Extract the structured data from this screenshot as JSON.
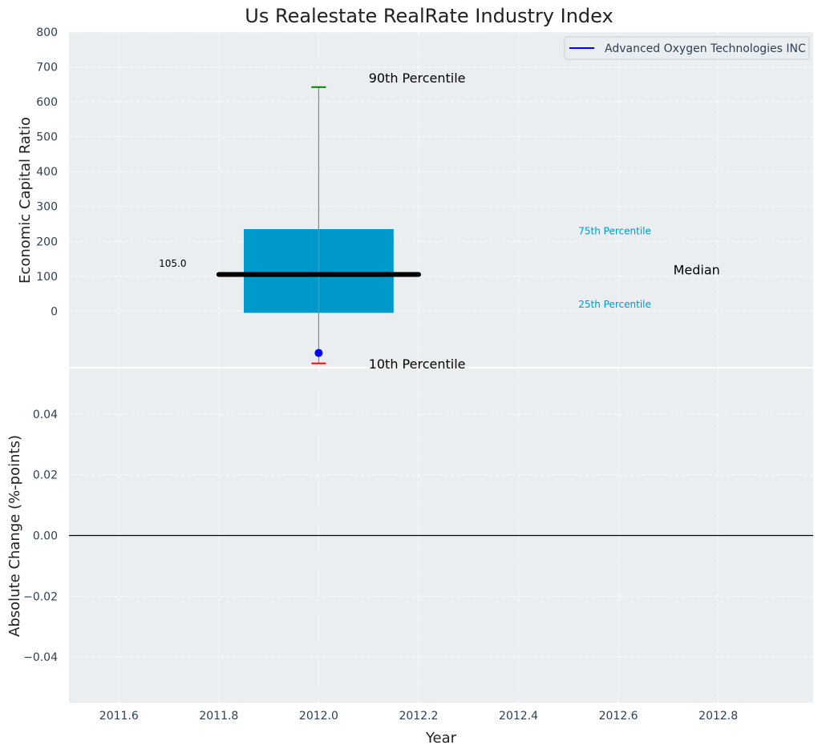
{
  "chart_data": [
    {
      "type": "boxplot",
      "title": "Us Realestate RealRate Industry Index",
      "xlabel": "",
      "ylabel": "Economic Capital Ratio",
      "ylim": [
        -160,
        800
      ],
      "xlim": [
        2011.5,
        2012.99
      ],
      "yticks": [
        0,
        100,
        200,
        300,
        400,
        500,
        600,
        700,
        800
      ],
      "ytick_labels": [
        "0",
        "100",
        "200",
        "300",
        "400",
        "500",
        "600",
        "700",
        "800"
      ],
      "grid": true,
      "x": 2012.0,
      "box": {
        "x_from": 2011.85,
        "x_to": 2012.15,
        "q25": -5,
        "q75": 235
      },
      "median": {
        "x_from": 2011.8,
        "x_to": 2012.2,
        "value": 105
      },
      "whisker": {
        "low": -150,
        "high": 642
      },
      "point": {
        "series": "Advanced Oxygen Technologies INC",
        "value": -120
      },
      "legend": {
        "location": "top-right",
        "entries": [
          {
            "label": "Advanced Oxygen Technologies INC",
            "color": "#0000ff"
          }
        ]
      },
      "annotations": [
        {
          "id": "p90",
          "text": "90th Percentile",
          "x": 2012.1,
          "y": 655,
          "color": "#000000",
          "size": "large"
        },
        {
          "id": "p10",
          "text": "10th Percentile",
          "x": 2012.1,
          "y": -165,
          "color": "#000000",
          "size": "large"
        },
        {
          "id": "p75",
          "text": "75th Percentile",
          "x": 2012.52,
          "y": 220,
          "color": "#0099cc",
          "size": "small"
        },
        {
          "id": "p25",
          "text": "25th Percentile",
          "x": 2012.52,
          "y": 10,
          "color": "#0099cc",
          "size": "small"
        },
        {
          "id": "median",
          "text": "Median",
          "x": 2012.71,
          "y": 105,
          "color": "#000000",
          "size": "large"
        },
        {
          "id": "median_value",
          "text": "105.0",
          "x": 2011.68,
          "y": 127,
          "color": "#000000",
          "size": "tiny"
        }
      ]
    },
    {
      "type": "line",
      "title": "",
      "xlabel": "Year",
      "ylabel": "Absolute Change (%-points)",
      "xlim": [
        2011.5,
        2012.99
      ],
      "ylim": [
        -0.055,
        0.055
      ],
      "xticks": [
        2011.6,
        2011.8,
        2012.0,
        2012.2,
        2012.4,
        2012.6,
        2012.8
      ],
      "xtick_labels": [
        "2011.6",
        "2011.8",
        "2012.0",
        "2012.2",
        "2012.4",
        "2012.6",
        "2012.8"
      ],
      "yticks": [
        -0.04,
        -0.02,
        0.0,
        0.02,
        0.04
      ],
      "ytick_labels": [
        "−0.04",
        "−0.02",
        "0.00",
        "0.02",
        "0.04"
      ],
      "grid": true,
      "hline": 0.0,
      "series": []
    }
  ],
  "colors": {
    "axes_bg": "#eaeef0",
    "grid": "#ffffff",
    "box": "#0099cc",
    "median": "#000000",
    "whisker": "#888888",
    "p90_cap": "#008000",
    "p10_cap": "#ff0000",
    "point": "#0000ff",
    "tick_text": "#2e3f55"
  }
}
